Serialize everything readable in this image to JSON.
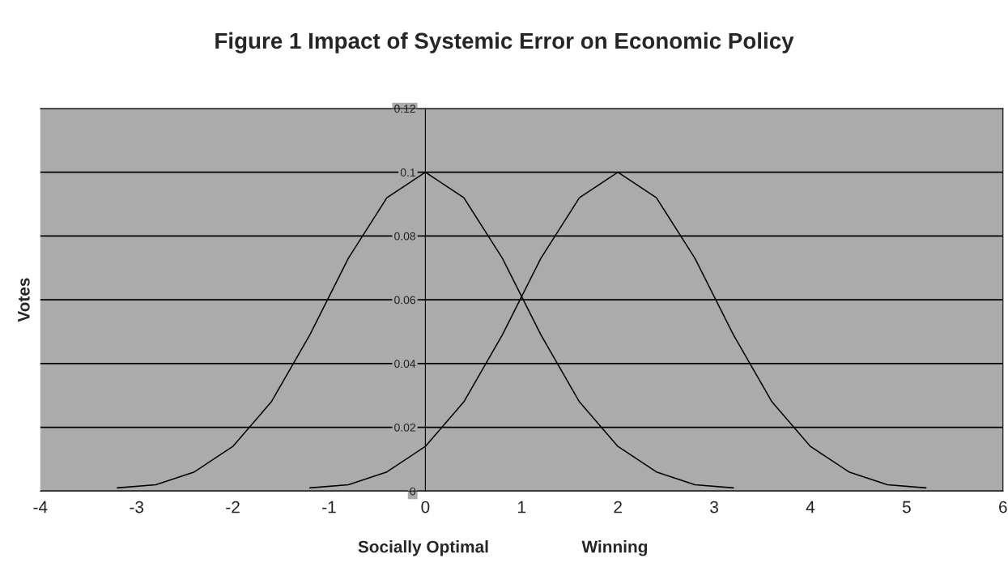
{
  "chart_data": {
    "type": "line",
    "title": "Figure 1 Impact of Systemic Error on Economic Policy",
    "ylabel": "Votes",
    "series": [
      {
        "color": "#000000",
        "x": [
          -3.2,
          -2.8,
          -2.4,
          -2.0,
          -1.6,
          -1.2,
          -0.8,
          -0.4,
          0,
          0.4,
          0.8,
          1.2,
          1.6,
          2.0,
          2.4,
          2.8,
          3.2
        ],
        "values": [
          0.001,
          0.002,
          0.006,
          0.014,
          0.028,
          0.049,
          0.073,
          0.092,
          0.1,
          0.092,
          0.073,
          0.049,
          0.028,
          0.014,
          0.006,
          0.002,
          0.001
        ]
      },
      {
        "color": "#000000",
        "x": [
          -1.2,
          -0.8,
          -0.4,
          0,
          0.4,
          0.8,
          1.2,
          1.6,
          2.0,
          2.4,
          2.8,
          3.2,
          3.6,
          4.0,
          4.4,
          4.8,
          5.2
        ],
        "values": [
          0.001,
          0.002,
          0.006,
          0.014,
          0.028,
          0.049,
          0.073,
          0.092,
          0.1,
          0.092,
          0.073,
          0.049,
          0.028,
          0.014,
          0.006,
          0.002,
          0.001
        ]
      }
    ],
    "xlim": [
      -4,
      6
    ],
    "xticks": [
      -4,
      -3,
      -2,
      -1,
      0,
      1,
      2,
      3,
      4,
      5,
      6
    ],
    "ylim": [
      0,
      0.12
    ],
    "yticks": [
      0,
      0.02,
      0.04,
      0.06,
      0.08,
      0.1,
      0.12
    ],
    "grid": "y",
    "marker": "none",
    "line_style": "solid",
    "annotations": [
      "Socially Optimal",
      "Winning"
    ]
  }
}
